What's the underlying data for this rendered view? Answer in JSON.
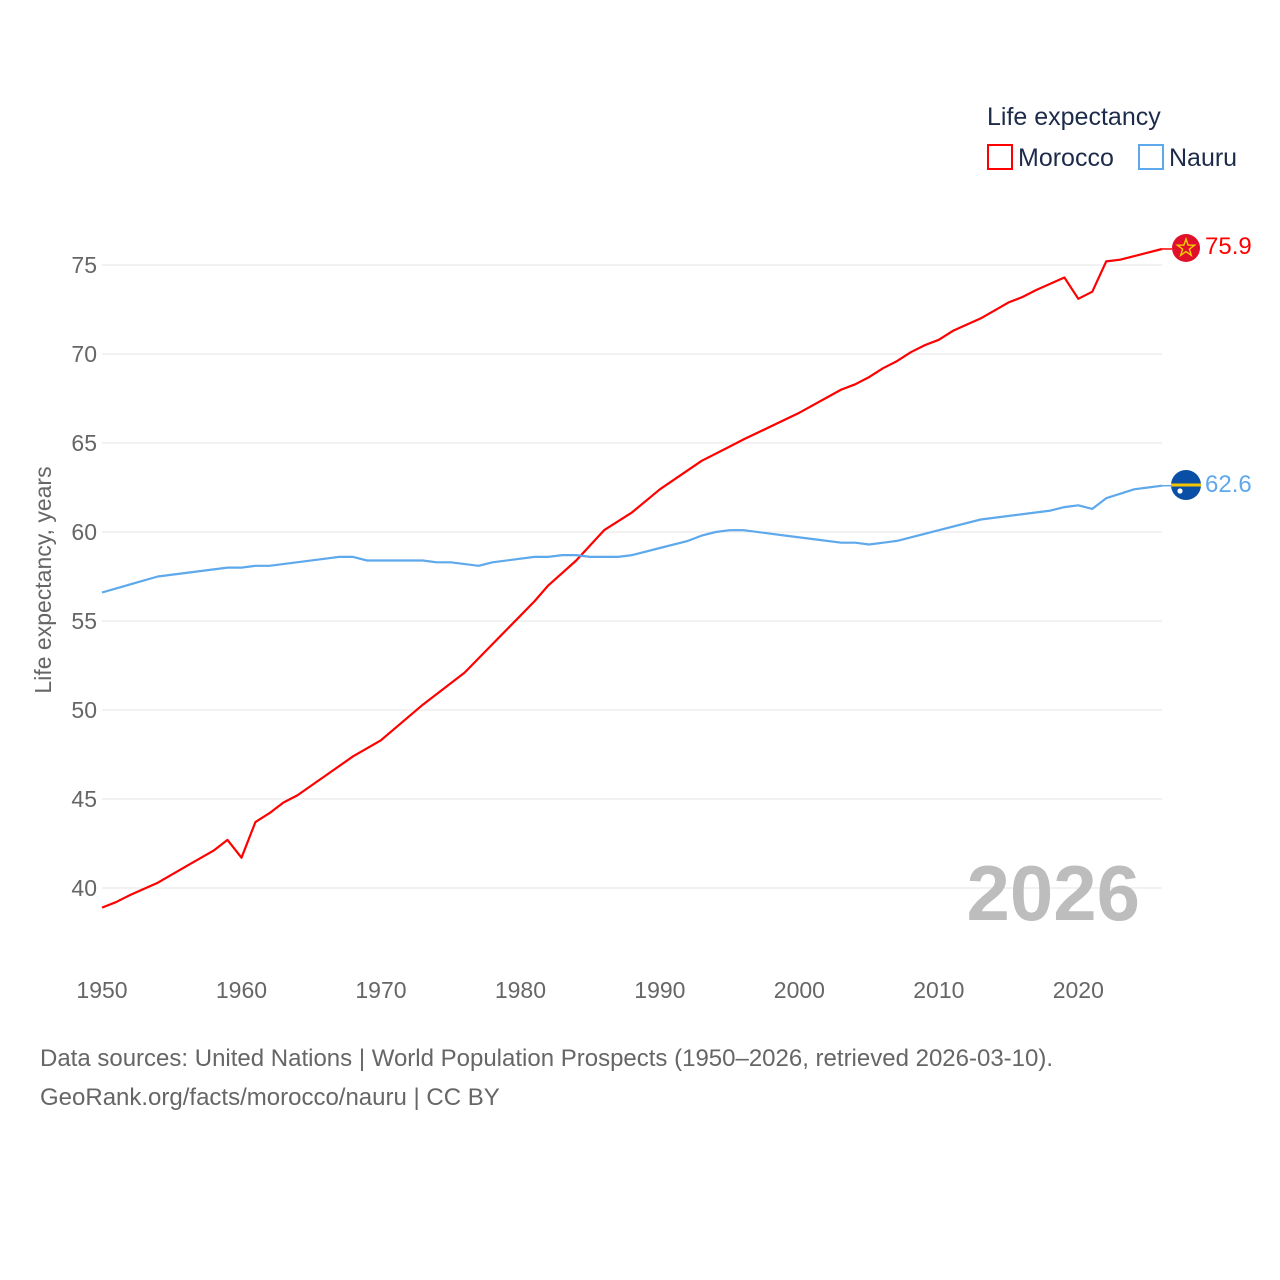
{
  "chart_data": {
    "type": "line",
    "ylabel": "Life expectancy, years",
    "xlabel": "",
    "legend_title": "Life expectancy",
    "legend_placement": "top-right",
    "xlim": [
      1950,
      2026
    ],
    "ylim": [
      37.7,
      77.5
    ],
    "yticks": [
      40,
      45,
      50,
      55,
      60,
      65,
      70,
      75
    ],
    "xticks": [
      1950,
      1960,
      1970,
      1980,
      1990,
      2000,
      2010,
      2020
    ],
    "grid": true,
    "year_label": "2026",
    "series": [
      {
        "name": "Morocco",
        "color": "#ff0000",
        "end_label": "75.9",
        "flag": "morocco-flag",
        "x": [
          1950,
          1951,
          1952,
          1954,
          1956,
          1958,
          1959,
          1960,
          1961,
          1962,
          1963,
          1964,
          1966,
          1968,
          1970,
          1973,
          1976,
          1978,
          1980,
          1981,
          1982,
          1983,
          1984,
          1986,
          1988,
          1990,
          1993,
          1995,
          1996,
          2000,
          2003,
          2004,
          2005,
          2006,
          2007,
          2008,
          2009,
          2010,
          2011,
          2013,
          2015,
          2016,
          2017,
          2019,
          2020,
          2021,
          2022,
          2023,
          2026
        ],
        "y": [
          38.9,
          39.2,
          39.6,
          40.3,
          41.2,
          42.1,
          42.7,
          41.7,
          43.7,
          44.2,
          44.8,
          45.2,
          46.3,
          47.4,
          48.3,
          50.3,
          52.1,
          53.7,
          55.3,
          56.1,
          57.0,
          57.7,
          58.4,
          60.1,
          61.1,
          62.4,
          64.0,
          64.8,
          65.2,
          66.7,
          68.0,
          68.3,
          68.7,
          69.2,
          69.6,
          70.1,
          70.5,
          70.8,
          71.3,
          72.0,
          72.9,
          73.2,
          73.6,
          74.3,
          73.1,
          73.5,
          75.2,
          75.3,
          75.9
        ]
      },
      {
        "name": "Nauru",
        "color": "#5ea8ec",
        "end_label": "62.6",
        "flag": "nauru-flag",
        "x": [
          1950,
          1954,
          1959,
          1960,
          1961,
          1962,
          1966,
          1967,
          1968,
          1969,
          1973,
          1974,
          1975,
          1977,
          1978,
          1981,
          1982,
          1983,
          1984,
          1985,
          1987,
          1988,
          1990,
          1992,
          1993,
          1994,
          1995,
          1996,
          1998,
          1999,
          2001,
          2003,
          2004,
          2005,
          2006,
          2007,
          2010,
          2013,
          2018,
          2019,
          2020,
          2021,
          2022,
          2024,
          2025,
          2026
        ],
        "y": [
          56.6,
          57.5,
          58.0,
          58.0,
          58.1,
          58.1,
          58.5,
          58.6,
          58.6,
          58.4,
          58.4,
          58.3,
          58.3,
          58.1,
          58.3,
          58.6,
          58.6,
          58.7,
          58.7,
          58.6,
          58.6,
          58.7,
          59.1,
          59.5,
          59.8,
          60.0,
          60.1,
          60.1,
          59.9,
          59.8,
          59.6,
          59.4,
          59.4,
          59.3,
          59.4,
          59.5,
          60.1,
          60.7,
          61.2,
          61.4,
          61.5,
          61.3,
          61.9,
          62.4,
          62.5,
          62.6
        ]
      }
    ]
  },
  "footer": {
    "sources": "Data sources: United Nations | World Population Prospects (1950–2026, retrieved 2026-03-10).",
    "credit": "GeoRank.org/facts/morocco/nauru | CC BY"
  }
}
